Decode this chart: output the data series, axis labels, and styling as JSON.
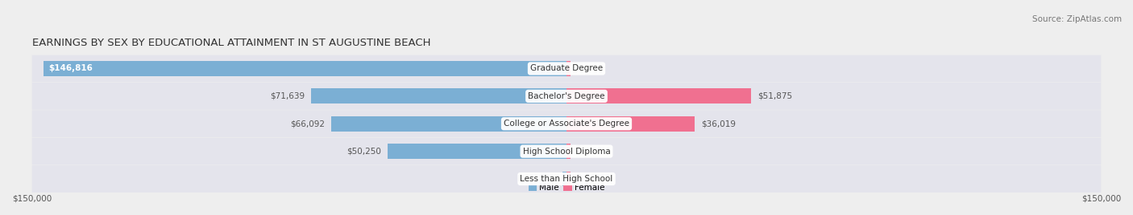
{
  "title": "EARNINGS BY SEX BY EDUCATIONAL ATTAINMENT IN ST AUGUSTINE BEACH",
  "source": "Source: ZipAtlas.com",
  "categories": [
    "Less than High School",
    "High School Diploma",
    "College or Associate's Degree",
    "Bachelor's Degree",
    "Graduate Degree"
  ],
  "male_values": [
    0,
    50250,
    66092,
    71639,
    146816
  ],
  "female_values": [
    0,
    0,
    36019,
    51875,
    0
  ],
  "male_color": "#7bafd4",
  "female_color": "#f07090",
  "background_color": "#eeeeee",
  "row_bg_even": "#e8e8ee",
  "row_bg_odd": "#dcdce8",
  "max_value": 150000,
  "x_axis_left_label": "$150,000",
  "x_axis_right_label": "$150,000",
  "legend_male": "Male",
  "legend_female": "Female",
  "title_fontsize": 9.5,
  "source_fontsize": 7.5,
  "label_fontsize": 7.5,
  "category_fontsize": 7.5
}
